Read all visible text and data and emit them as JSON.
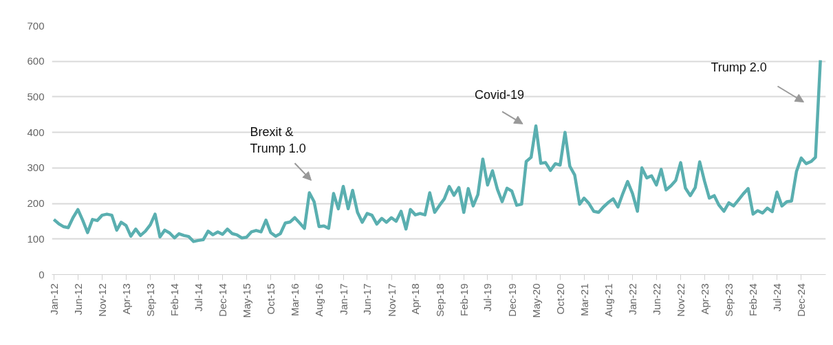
{
  "chart_data": {
    "type": "line",
    "x": [
      "2012-01",
      "2012-02",
      "2012-03",
      "2012-04",
      "2012-05",
      "2012-06",
      "2012-07",
      "2012-08",
      "2012-09",
      "2012-10",
      "2012-11",
      "2012-12",
      "2013-01",
      "2013-02",
      "2013-03",
      "2013-04",
      "2013-05",
      "2013-06",
      "2013-07",
      "2013-08",
      "2013-09",
      "2013-10",
      "2013-11",
      "2013-12",
      "2014-01",
      "2014-02",
      "2014-03",
      "2014-04",
      "2014-05",
      "2014-06",
      "2014-07",
      "2014-08",
      "2014-09",
      "2014-10",
      "2014-11",
      "2014-12",
      "2015-01",
      "2015-02",
      "2015-03",
      "2015-04",
      "2015-05",
      "2015-06",
      "2015-07",
      "2015-08",
      "2015-09",
      "2015-10",
      "2015-11",
      "2015-12",
      "2016-01",
      "2016-02",
      "2016-03",
      "2016-04",
      "2016-05",
      "2016-06",
      "2016-07",
      "2016-08",
      "2016-09",
      "2016-10",
      "2016-11",
      "2016-12",
      "2017-01",
      "2017-02",
      "2017-03",
      "2017-04",
      "2017-05",
      "2017-06",
      "2017-07",
      "2017-08",
      "2017-09",
      "2017-10",
      "2017-11",
      "2017-12",
      "2018-01",
      "2018-02",
      "2018-03",
      "2018-04",
      "2018-05",
      "2018-06",
      "2018-07",
      "2018-08",
      "2018-09",
      "2018-10",
      "2018-11",
      "2018-12",
      "2019-01",
      "2019-02",
      "2019-03",
      "2019-04",
      "2019-05",
      "2019-06",
      "2019-07",
      "2019-08",
      "2019-09",
      "2019-10",
      "2019-11",
      "2019-12",
      "2020-01",
      "2020-02",
      "2020-03",
      "2020-04",
      "2020-05",
      "2020-06",
      "2020-07",
      "2020-08",
      "2020-09",
      "2020-10",
      "2020-11",
      "2020-12",
      "2021-01",
      "2021-02",
      "2021-03",
      "2021-04",
      "2021-05",
      "2021-06",
      "2021-07",
      "2021-08",
      "2021-09",
      "2021-10",
      "2021-11",
      "2021-12",
      "2022-01",
      "2022-02",
      "2022-03",
      "2022-04",
      "2022-05",
      "2022-06",
      "2022-07",
      "2022-08",
      "2022-09",
      "2022-10",
      "2022-11",
      "2022-12",
      "2023-01",
      "2023-02",
      "2023-03",
      "2023-04",
      "2023-05",
      "2023-06",
      "2023-07",
      "2023-08",
      "2023-09",
      "2023-10",
      "2023-11",
      "2023-12",
      "2024-01",
      "2024-02",
      "2024-03",
      "2024-04",
      "2024-05",
      "2024-06",
      "2024-07",
      "2024-08",
      "2024-09",
      "2024-10",
      "2024-11",
      "2024-12",
      "2025-01",
      "2025-02",
      "2025-03",
      "2025-04"
    ],
    "series": [
      {
        "color": "#5aafb0",
        "values": [
          155,
          143,
          135,
          132,
          160,
          183,
          153,
          118,
          155,
          152,
          167,
          170,
          167,
          125,
          147,
          138,
          108,
          128,
          110,
          122,
          140,
          170,
          106,
          125,
          117,
          103,
          115,
          110,
          107,
          93,
          96,
          98,
          122,
          112,
          120,
          113,
          128,
          115,
          112,
          103,
          105,
          120,
          124,
          120,
          153,
          118,
          108,
          115,
          145,
          148,
          160,
          145,
          130,
          230,
          205,
          135,
          137,
          130,
          228,
          185,
          248,
          185,
          237,
          175,
          147,
          172,
          167,
          142,
          158,
          147,
          160,
          150,
          178,
          128,
          183,
          168,
          172,
          168,
          230,
          175,
          195,
          213,
          248,
          223,
          245,
          175,
          242,
          193,
          225,
          325,
          252,
          292,
          240,
          205,
          243,
          235,
          195,
          198,
          318,
          330,
          418,
          313,
          315,
          293,
          312,
          308,
          400,
          305,
          280,
          198,
          215,
          200,
          178,
          175,
          190,
          203,
          213,
          190,
          228,
          262,
          228,
          178,
          300,
          272,
          278,
          252,
          296,
          238,
          250,
          265,
          315,
          243,
          222,
          245,
          317,
          262,
          215,
          222,
          195,
          178,
          202,
          193,
          210,
          227,
          242,
          170,
          180,
          173,
          187,
          177,
          232,
          193,
          205,
          207,
          290,
          328,
          312,
          318,
          330,
          603
        ]
      }
    ],
    "xlim": [
      "2011-12-20",
      "2025-05-05"
    ],
    "xticks": [
      {
        "value": "2012-01",
        "label": "Jan-12"
      },
      {
        "value": "2012-06",
        "label": "Jun-12"
      },
      {
        "value": "2012-11",
        "label": "Nov-12"
      },
      {
        "value": "2013-04",
        "label": "Apr-13"
      },
      {
        "value": "2013-09",
        "label": "Sep-13"
      },
      {
        "value": "2014-02",
        "label": "Feb-14"
      },
      {
        "value": "2014-07",
        "label": "Jul-14"
      },
      {
        "value": "2014-12",
        "label": "Dec-14"
      },
      {
        "value": "2015-05",
        "label": "May-15"
      },
      {
        "value": "2015-10",
        "label": "Oct-15"
      },
      {
        "value": "2016-03",
        "label": "Mar-16"
      },
      {
        "value": "2016-08",
        "label": "Aug-16"
      },
      {
        "value": "2017-01",
        "label": "Jan-17"
      },
      {
        "value": "2017-06",
        "label": "Jun-17"
      },
      {
        "value": "2017-11",
        "label": "Nov-17"
      },
      {
        "value": "2018-04",
        "label": "Apr-18"
      },
      {
        "value": "2018-09",
        "label": "Sep-18"
      },
      {
        "value": "2019-02",
        "label": "Feb-19"
      },
      {
        "value": "2019-07",
        "label": "Jul-19"
      },
      {
        "value": "2019-12",
        "label": "Dec-19"
      },
      {
        "value": "2020-05",
        "label": "May-20"
      },
      {
        "value": "2020-10",
        "label": "Oct-20"
      },
      {
        "value": "2021-03",
        "label": "Mar-21"
      },
      {
        "value": "2021-08",
        "label": "Aug-21"
      },
      {
        "value": "2022-01",
        "label": "Jan-22"
      },
      {
        "value": "2022-06",
        "label": "Jun-22"
      },
      {
        "value": "2022-11",
        "label": "Nov-22"
      },
      {
        "value": "2023-04",
        "label": "Apr-23"
      },
      {
        "value": "2023-09",
        "label": "Sep-23"
      },
      {
        "value": "2024-02",
        "label": "Feb-24"
      },
      {
        "value": "2024-07",
        "label": "Jul-24"
      },
      {
        "value": "2024-12",
        "label": "Dec-24"
      }
    ],
    "ylim": [
      0,
      700
    ],
    "yticks": [
      0,
      100,
      200,
      300,
      400,
      500,
      600,
      700
    ],
    "grid": "y",
    "annotations": [
      "Brexit &\nTrump 1.0",
      {
        "text": "Covid-19",
        "x": "2020-05",
        "y": 418
      },
      "Trump 2.0"
    ]
  }
}
